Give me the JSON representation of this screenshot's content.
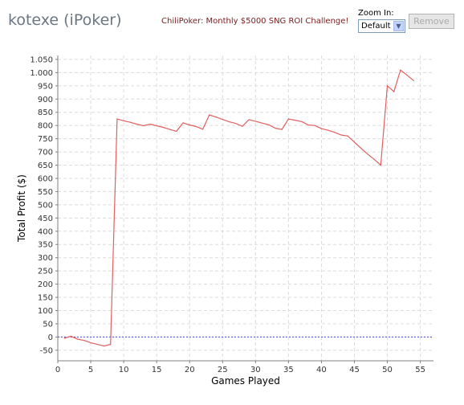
{
  "header": {
    "title": "kotexe (iPoker)",
    "challenge_link": "ChiliPoker: Monthly $5000 SNG ROI Challenge!",
    "zoom_label": "Zoom In:",
    "zoom_value": "Default",
    "remove_label": "Remove"
  },
  "colors": {
    "line": "#e06060",
    "zero_line": "#4a4ad0",
    "grid": "#dcdcdc",
    "axis": "#808080"
  },
  "chart_data": {
    "type": "line",
    "xlabel": "Games Played",
    "ylabel": "Total Profit ($)",
    "xlim": [
      0,
      57
    ],
    "ylim": [
      -90,
      1065
    ],
    "x_ticks": [
      0,
      5,
      10,
      15,
      20,
      25,
      30,
      35,
      40,
      45,
      50,
      55
    ],
    "y_ticks": [
      -50,
      0,
      50,
      100,
      150,
      200,
      250,
      300,
      350,
      400,
      450,
      500,
      550,
      600,
      650,
      700,
      750,
      800,
      850,
      900,
      950,
      1000,
      1050
    ],
    "y_tick_labels": [
      "-50",
      "0",
      "50",
      "100",
      "150",
      "200",
      "250",
      "300",
      "350",
      "400",
      "450",
      "500",
      "550",
      "600",
      "650",
      "700",
      "750",
      "800",
      "850",
      "900",
      "950",
      "1.000",
      "1.050"
    ],
    "reference_line": 0,
    "grid": true,
    "x": [
      1,
      2,
      3,
      4,
      5,
      6,
      7,
      8,
      9,
      10,
      11,
      12,
      13,
      14,
      15,
      16,
      17,
      18,
      19,
      20,
      21,
      22,
      23,
      24,
      25,
      26,
      27,
      28,
      29,
      30,
      31,
      32,
      33,
      34,
      35,
      36,
      37,
      38,
      39,
      40,
      41,
      42,
      43,
      44,
      45,
      46,
      47,
      48,
      49,
      50,
      51,
      52,
      53,
      54
    ],
    "y": [
      -5,
      3,
      -8,
      -13,
      -22,
      -28,
      -34,
      -28,
      825,
      818,
      812,
      805,
      799,
      805,
      799,
      793,
      785,
      778,
      810,
      802,
      796,
      786,
      840,
      832,
      823,
      814,
      808,
      797,
      822,
      816,
      809,
      803,
      790,
      785,
      825,
      820,
      815,
      802,
      800,
      788,
      782,
      774,
      764,
      760,
      737,
      714,
      692,
      672,
      650,
      950,
      928,
      1010,
      990,
      970
    ]
  }
}
